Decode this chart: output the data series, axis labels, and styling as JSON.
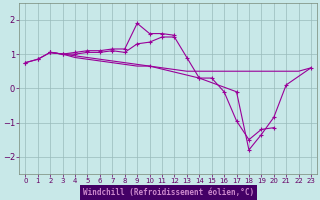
{
  "xlabel": "Windchill (Refroidissement éolien,°C)",
  "xlim": [
    -0.5,
    23.5
  ],
  "ylim": [
    -2.5,
    2.5
  ],
  "yticks": [
    -2,
    -1,
    0,
    1,
    2
  ],
  "xticks": [
    0,
    1,
    2,
    3,
    4,
    5,
    6,
    7,
    8,
    9,
    10,
    11,
    12,
    13,
    14,
    15,
    16,
    17,
    18,
    19,
    20,
    21,
    22,
    23
  ],
  "background_color": "#c8e8e8",
  "plot_bg": "#c8e8e8",
  "line_color": "#990099",
  "grid_color": "#99bbbb",
  "xlabel_bg": "#440066",
  "xlabel_fg": "#cc88cc",
  "tick_color": "#660066",
  "series": [
    {
      "x": [
        0,
        1,
        2,
        3,
        4,
        5,
        6,
        7,
        8,
        9,
        10,
        11,
        12
      ],
      "y": [
        0.75,
        0.85,
        1.05,
        1.0,
        1.05,
        1.1,
        1.1,
        1.15,
        1.15,
        1.9,
        1.6,
        1.6,
        1.55
      ],
      "marker": true
    },
    {
      "x": [
        0,
        1,
        2,
        3,
        4,
        5,
        6,
        7,
        8,
        9,
        10,
        11,
        12,
        13,
        14,
        15,
        16,
        17,
        18,
        19,
        20
      ],
      "y": [
        0.75,
        0.85,
        1.05,
        1.0,
        1.0,
        1.05,
        1.05,
        1.1,
        1.05,
        1.3,
        1.35,
        1.5,
        1.5,
        0.9,
        0.3,
        0.3,
        -0.1,
        -0.95,
        -1.5,
        -1.2,
        -1.15
      ],
      "marker": true
    },
    {
      "x": [
        2,
        3,
        4,
        5,
        6,
        7,
        8,
        9,
        10,
        11,
        12,
        13,
        14,
        15,
        16,
        17,
        18,
        19,
        20,
        21,
        22,
        23
      ],
      "y": [
        1.05,
        1.0,
        0.9,
        0.85,
        0.8,
        0.75,
        0.7,
        0.65,
        0.65,
        0.6,
        0.55,
        0.5,
        0.5,
        0.5,
        0.5,
        0.5,
        0.5,
        0.5,
        0.5,
        0.5,
        0.5,
        0.6
      ],
      "marker": false
    },
    {
      "x": [
        2,
        10,
        14,
        17,
        18,
        19,
        20,
        21,
        23
      ],
      "y": [
        1.05,
        0.65,
        0.3,
        -0.1,
        -1.8,
        -1.35,
        -0.85,
        0.1,
        0.6
      ],
      "marker": true
    }
  ]
}
